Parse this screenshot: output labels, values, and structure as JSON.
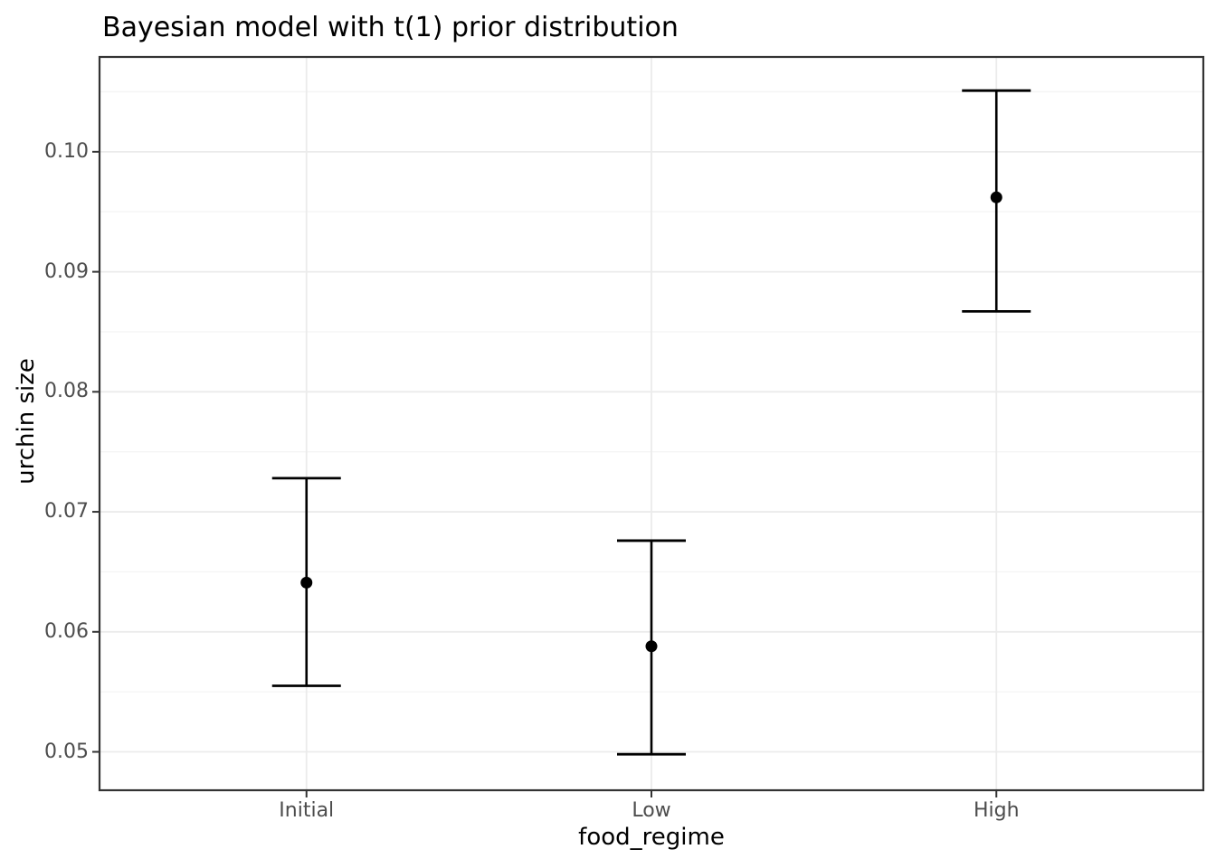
{
  "chart_data": {
    "type": "scatter",
    "subtype": "point-range-error-bars",
    "title": "Bayesian model with t(1) prior distribution",
    "xlabel": "food_regime",
    "ylabel": "urchin size",
    "categories": [
      "Initial",
      "Low",
      "High"
    ],
    "points": [
      {
        "x": "Initial",
        "y": 0.0641,
        "ymin": 0.0555,
        "ymax": 0.0728
      },
      {
        "x": "Low",
        "y": 0.0588,
        "ymin": 0.0498,
        "ymax": 0.0676
      },
      {
        "x": "High",
        "y": 0.0962,
        "ymin": 0.0867,
        "ymax": 0.1051
      }
    ],
    "y_ticks": [
      0.05,
      0.06,
      0.07,
      0.08,
      0.09,
      0.1
    ],
    "y_tick_labels": [
      "0.05",
      "0.06",
      "0.07",
      "0.08",
      "0.09",
      "0.10"
    ],
    "y_minor_ticks": [
      0.055,
      0.065,
      0.075,
      0.085,
      0.095,
      0.105
    ],
    "ylim": [
      0.0468,
      0.1079
    ],
    "grid": "horizontal major+minor, vertical major at categories",
    "legend": "none",
    "colors": {
      "data": "#000000",
      "grid_major": "#ebebeb",
      "grid_minor": "#f5f5f5",
      "panel_border": "#333333",
      "tick_mark": "#333333",
      "tick_label": "#4d4d4d",
      "title": "#000000",
      "axis_title": "#000000",
      "background": "#ffffff"
    }
  }
}
